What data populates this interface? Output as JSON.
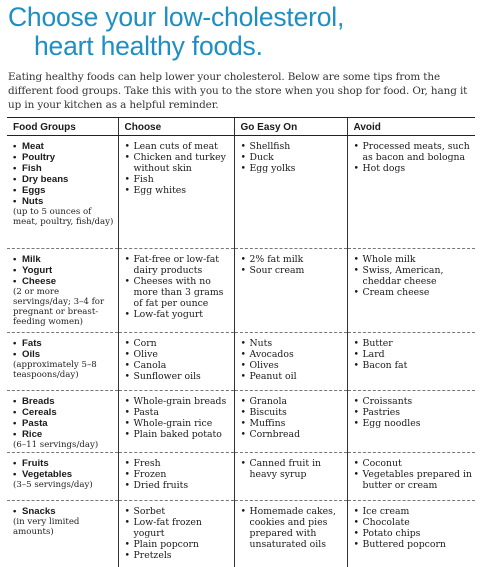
{
  "title": {
    "line1": "Choose your low-cholesterol,",
    "line2": "heart healthy foods."
  },
  "intro": "Eating healthy foods can help lower your cholesterol. Below are some tips from the different food groups. Take this with you to the store when you shop for food. Or, hang it up in your kitchen as a helpful reminder.",
  "table": {
    "headers": [
      "Food Groups",
      "Choose",
      "Go Easy On",
      "Avoid"
    ],
    "rows": [
      {
        "groups": [
          "Meat",
          "Poultry",
          "Fish",
          "Dry beans",
          "Eggs",
          "Nuts"
        ],
        "note": "(up to 5 ounces of meat, poultry, fish/day)",
        "choose": [
          "Lean cuts of meat",
          "Chicken and turkey without skin",
          "Fish",
          "Egg whites"
        ],
        "go_easy": [
          "Shellfish",
          "Duck",
          "Egg yolks"
        ],
        "avoid": [
          "Processed meats, such as bacon and bologna",
          "Hot dogs"
        ]
      },
      {
        "groups": [
          "Milk",
          "Yogurt",
          "Cheese"
        ],
        "note": "(2 or more servings/day; 3–4 for pregnant or breast-feeding women)",
        "choose": [
          "Fat-free or low-fat dairy products",
          "Cheeses with no more than 3 grams of fat per ounce",
          "Low-fat yogurt"
        ],
        "go_easy": [
          "2% fat milk",
          "Sour cream"
        ],
        "avoid": [
          "Whole milk",
          "Swiss, American, cheddar cheese",
          "Cream cheese"
        ]
      },
      {
        "groups": [
          "Fats",
          "Oils"
        ],
        "note": "(approximately 5–8 teaspoons/day)",
        "choose": [
          "Corn",
          "Olive",
          "Canola",
          "Sunflower oils"
        ],
        "go_easy": [
          "Nuts",
          "Avocados",
          "Olives",
          "Peanut oil"
        ],
        "avoid": [
          "Butter",
          "Lard",
          "Bacon fat"
        ]
      },
      {
        "groups": [
          "Breads",
          "Cereals",
          "Pasta",
          "Rice"
        ],
        "note": "(6–11 servings/day)",
        "choose": [
          "Whole-grain breads",
          "Pasta",
          "Whole-grain rice",
          "Plain baked potato"
        ],
        "go_easy": [
          "Granola",
          "Biscuits",
          "Muffins",
          "Cornbread"
        ],
        "avoid": [
          "Croissants",
          "Pastries",
          "Egg noodles"
        ]
      },
      {
        "groups": [
          "Fruits",
          "Vegetables"
        ],
        "note": "(3–5 servings/day)",
        "choose": [
          "Fresh",
          "Frozen",
          "Dried fruits"
        ],
        "go_easy": [
          "Canned fruit in heavy syrup"
        ],
        "avoid": [
          "Coconut",
          "Vegetables prepared in butter or cream"
        ]
      },
      {
        "groups": [
          "Snacks"
        ],
        "note": "(in very limited amounts)",
        "choose": [
          "Sorbet",
          "Low-fat frozen yogurt",
          "Plain popcorn",
          "Pretzels"
        ],
        "go_easy": [
          "Homemade cakes, cookies and pies prepared with unsaturated oils"
        ],
        "avoid": [
          "Ice cream",
          "Chocolate",
          "Potato chips",
          "Buttered popcorn"
        ]
      }
    ]
  }
}
